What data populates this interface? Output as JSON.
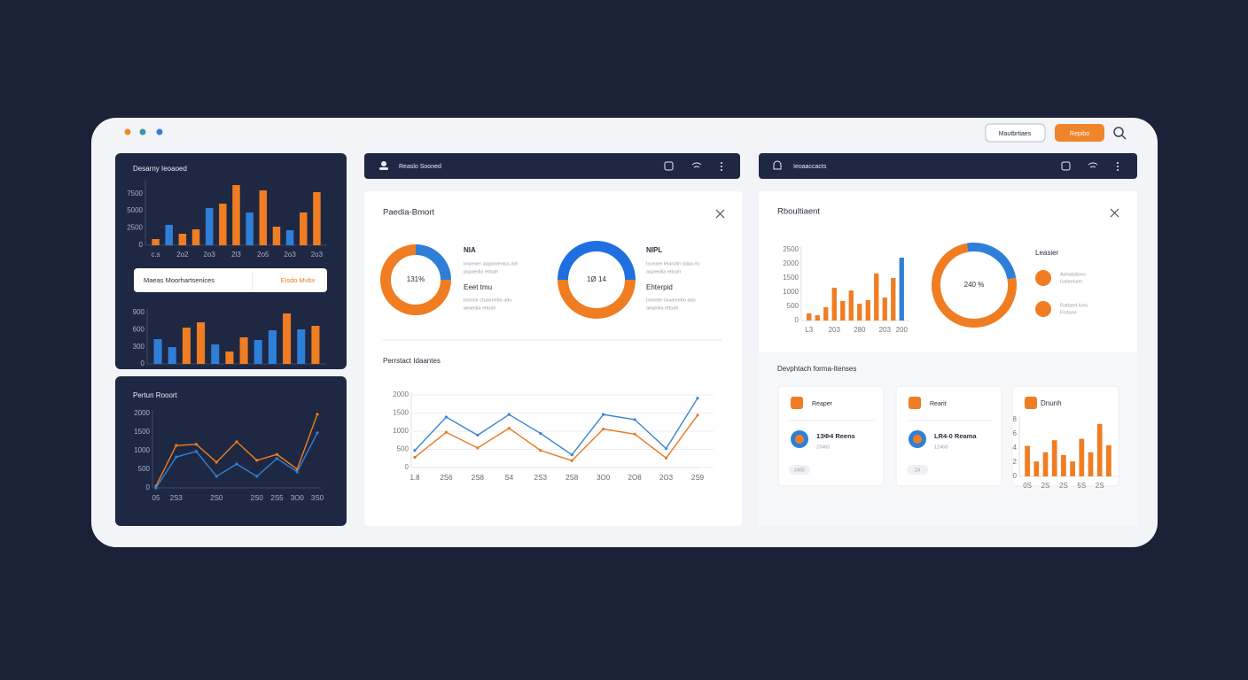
{
  "window": {
    "buttons": [
      "Mautbrtiaes",
      "Repibo"
    ]
  },
  "sidebar": {
    "widget_label": "Maeas Moorhartsenices",
    "widget_action": "Eisdo Mvbv"
  },
  "center_panel": {
    "header": "Reaslo Sooned",
    "title": "Paedia-Bmort",
    "legend": [
      {
        "heading": "NIA",
        "lines": [
          "Insreaer aagomentus adi",
          "aspaedia ettoah"
        ]
      },
      {
        "heading": "Eeet tmu",
        "lines": [
          "Inorine ctuiamebo adu",
          "aeaedia ettoah"
        ]
      },
      {
        "heading": "NIPL",
        "lines": [
          "Inceaer leiarutin adaa rlu",
          "aspeedia ettoah"
        ]
      },
      {
        "heading": "Ehterpid",
        "lines": [
          "Inmetie ctuiamebo adu",
          "aeaedia ettoah"
        ]
      }
    ]
  },
  "right_panel": {
    "header": "Ieoaaccacts",
    "title": "Rboultiaent",
    "legend_title": "Leasier",
    "legend": [
      [
        "Adnatutions",
        "Iuslaeiuon"
      ],
      [
        "Rattaed Iuns",
        "Frstune"
      ]
    ],
    "section_title": "Devphtach forma-Itenses",
    "cards": [
      {
        "title": "Reaper",
        "name": "1ЗФ4 Reens",
        "sub": "23465",
        "tag": "2465"
      },
      {
        "title": "Rearit",
        "name": "LR4-0 Reama",
        "sub": "12468",
        "tag": "24"
      }
    ]
  },
  "chart_data": [
    {
      "type": "bar",
      "title": "Desarny Ieoaoed",
      "categories": [
        "c.s",
        null,
        "2o2",
        null,
        "2o3",
        null,
        "2l3",
        null,
        "2o5",
        null,
        "2o3",
        null,
        "2o3"
      ],
      "values": [
        900,
        2960,
        1670,
        2310,
        5400,
        6040,
        8740,
        4760,
        7970,
        2700,
        2190,
        4760,
        7710
      ],
      "colors": [
        "#f07d22",
        "#2f7fd8",
        "#f07d22",
        "#f07d22",
        "#2f7fd8",
        "#f07d22",
        "#f07d22",
        "#2f7fd8",
        "#f07d22",
        "#f07d22",
        "#2f7fd8",
        "#f07d22",
        "#f07d22"
      ],
      "ylim": [
        0,
        9000
      ],
      "yticks": [
        0,
        2500,
        5000,
        7500
      ],
      "grid": false
    },
    {
      "type": "bar",
      "categories": [
        null,
        null,
        null,
        null,
        null,
        null,
        null,
        null,
        null,
        null,
        null,
        null
      ],
      "values": [
        434,
        295,
        636,
        729,
        341,
        217,
        466,
        419,
        590,
        884,
        605,
        667
      ],
      "colors": [
        "#2f7fd8",
        "#2f7fd8",
        "#f07d22",
        "#f07d22",
        "#2f7fd8",
        "#f07d22",
        "#f07d22",
        "#2f7fd8",
        "#2f7fd8",
        "#f07d22",
        "#2f7fd8",
        "#f07d22"
      ],
      "ylim": [
        0,
        900
      ],
      "yticks": [
        0,
        300,
        600,
        900
      ],
      "grid": false
    },
    {
      "type": "line",
      "title": "Pertun Rooort",
      "categories": [
        "05",
        "2S3",
        null,
        "2S0",
        null,
        "2S0",
        "2S5",
        "3O0",
        "3S0"
      ],
      "series": [
        {
          "color": "#f07d22",
          "values": [
            50,
            1140,
            1170,
            690,
            1240,
            740,
            900,
            500,
            1980
          ]
        },
        {
          "color": "#2f7fd8",
          "values": [
            0,
            830,
            980,
            310,
            640,
            310,
            790,
            430,
            1480
          ]
        }
      ],
      "ylim": [
        0,
        2000
      ],
      "yticks": [
        0,
        500,
        1000,
        1500,
        2000
      ],
      "grid": false
    },
    {
      "type": "donut",
      "center_label": "131%",
      "values": [
        25,
        75
      ],
      "colors": [
        "#2f7fd8",
        "#f07d22"
      ]
    },
    {
      "type": "donut",
      "center_label": "1Ø 14",
      "values": [
        50,
        50
      ],
      "colors": [
        "#1f6fe0",
        "#f07d22"
      ]
    },
    {
      "type": "line",
      "title": "Perrstact Idaantes",
      "categories": [
        "1.8",
        "2S6",
        "2S8",
        "S4",
        "2S3",
        "2S8",
        "3O0",
        "2O8",
        "2O3",
        "2S9"
      ],
      "series": [
        {
          "color": "#3a86cf",
          "values": [
            470,
            1390,
            890,
            1460,
            940,
            350,
            1460,
            1320,
            520,
            1910
          ]
        },
        {
          "color": "#e67a25",
          "values": [
            280,
            970,
            540,
            1080,
            470,
            190,
            1060,
            920,
            260,
            1440
          ]
        }
      ],
      "ylim": [
        0,
        2000
      ],
      "yticks": [
        0,
        500,
        1000,
        1500,
        2000
      ],
      "grid": true
    },
    {
      "type": "bar",
      "categories": [
        "L3",
        null,
        null,
        "203",
        null,
        null,
        "280",
        null,
        null,
        "203",
        null,
        "200"
      ],
      "values": [
        250,
        190,
        470,
        1160,
        690,
        1060,
        590,
        720,
        1660,
        810,
        1500,
        2220
      ],
      "colors": [
        "#f07d22",
        "#f07d22",
        "#f07d22",
        "#f07d22",
        "#f07d22",
        "#f07d22",
        "#f07d22",
        "#f07d22",
        "#f07d22",
        "#f07d22",
        "#f07d22",
        "#2f7fd8"
      ],
      "ylim": [
        0,
        2500
      ],
      "yticks": [
        0,
        500,
        1000,
        1500,
        2000,
        2500
      ],
      "grid": false
    },
    {
      "type": "donut",
      "center_label": "240 %",
      "values": [
        25,
        75
      ],
      "colors": [
        "#2f7fd8",
        "#f07d22"
      ]
    },
    {
      "type": "bar",
      "title": "Dnunh",
      "categories": [
        "0S",
        null,
        "2S",
        null,
        "2S",
        null,
        "5S",
        null,
        "2S",
        null
      ],
      "values": [
        4.3,
        2.1,
        3.4,
        5.1,
        3.0,
        2.1,
        5.3,
        3.4,
        7.4,
        4.4
      ],
      "colors": [
        "#f07d22",
        "#f07d22",
        "#f07d22",
        "#f07d22",
        "#f07d22",
        "#f07d22",
        "#f07d22",
        "#f07d22",
        "#f07d22",
        "#f07d22"
      ],
      "ylim": [
        0,
        8
      ],
      "yticks": [
        0,
        2,
        4,
        6,
        8
      ],
      "grid": false
    }
  ]
}
